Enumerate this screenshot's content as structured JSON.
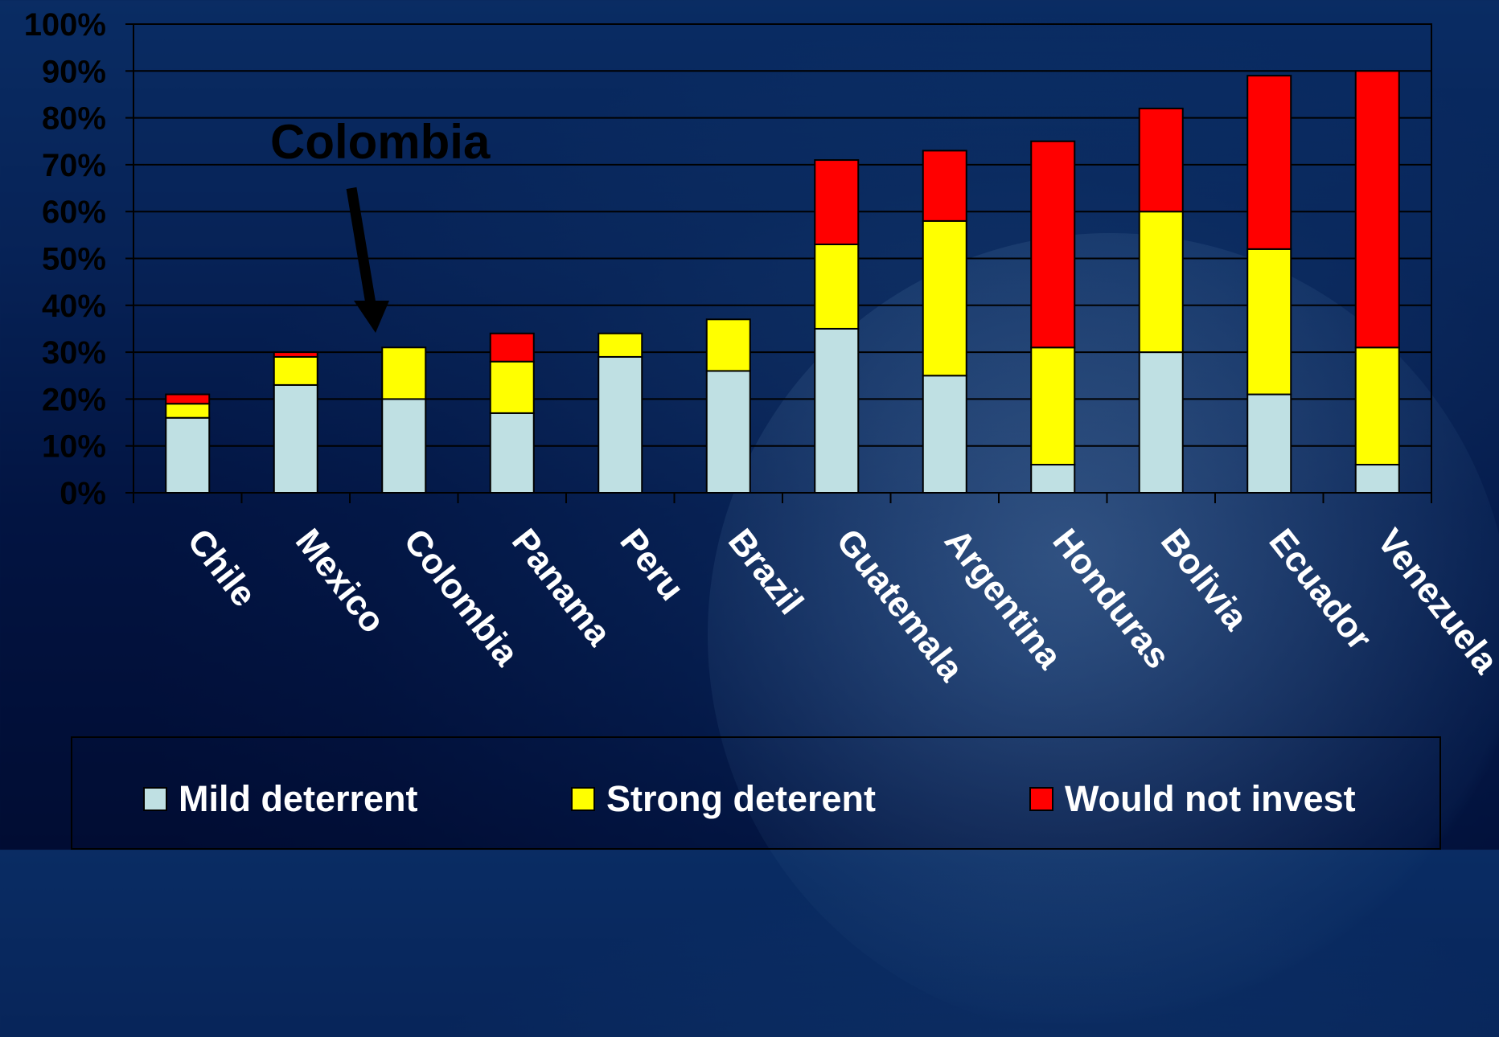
{
  "chart_data": {
    "type": "bar",
    "stacked": true,
    "categories": [
      "Chile",
      "Mexico",
      "Colombia",
      "Panama",
      "Peru",
      "Brazil",
      "Guatemala",
      "Argentina",
      "Honduras",
      "Bolivia",
      "Ecuador",
      "Venezuela"
    ],
    "series": [
      {
        "name": "Mild deterrent",
        "color": "#bfe0e3",
        "values": [
          16,
          23,
          20,
          17,
          29,
          26,
          35,
          25,
          6,
          30,
          21,
          6
        ]
      },
      {
        "name": "Strong deterent",
        "color": "#ffff00",
        "values": [
          3,
          6,
          11,
          11,
          5,
          11,
          18,
          33,
          25,
          30,
          31,
          25
        ]
      },
      {
        "name": "Would not invest",
        "color": "#ff0000",
        "values": [
          2,
          1,
          0,
          6,
          0,
          0,
          18,
          15,
          44,
          22,
          37,
          59
        ]
      }
    ],
    "yticks": [
      "0%",
      "10%",
      "20%",
      "30%",
      "40%",
      "50%",
      "60%",
      "70%",
      "80%",
      "90%",
      "100%"
    ],
    "ylim": [
      0,
      100
    ],
    "grid": true,
    "legend_position": "bottom",
    "annotation": {
      "text": "Colombia",
      "target": "Colombia"
    }
  }
}
